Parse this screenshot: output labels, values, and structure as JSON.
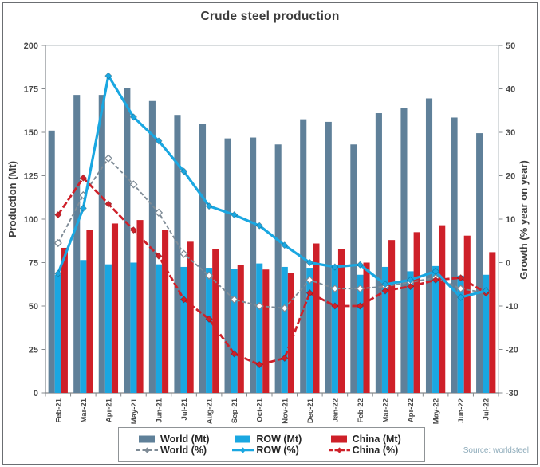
{
  "title": "Crude steel production",
  "source_note": "Source: worldsteel",
  "colors": {
    "world_bar": "#5f8099",
    "row_bar": "#1aa7e1",
    "china_bar": "#ce2029",
    "world_line": "#7e8b96",
    "row_line": "#1aa7e1",
    "china_line": "#ce2029",
    "axis_text": "#4a4a4a",
    "title_text": "#3b3b3b",
    "source_text": "#8caab9"
  },
  "chart_data": {
    "type": "bar",
    "subtype": "grouped bars (left axis, Mt) + lines with diamond markers (right axis, % growth)",
    "title": "Crude steel production",
    "grid": false,
    "legend_position": "bottom",
    "categories": [
      "Feb-21",
      "Mar-21",
      "Apr-21",
      "May-21",
      "Jun-21",
      "Jul-21",
      "Aug-21",
      "Sep-21",
      "Oct-21",
      "Nov-21",
      "Dec-21",
      "Jan-22",
      "Feb-22",
      "Mar-22",
      "Apr-22",
      "May-22",
      "Jun-22",
      "Jul-22"
    ],
    "left_axis": {
      "label": "Production (Mt)",
      "min": 0,
      "max": 200,
      "step": 25,
      "ticks": [
        0,
        25,
        50,
        75,
        100,
        125,
        150,
        175,
        200
      ]
    },
    "right_axis": {
      "label": "Growth (% year on year)",
      "min": -30,
      "max": 50,
      "step": 10,
      "ticks": [
        -30,
        -20,
        -10,
        0,
        10,
        20,
        30,
        40,
        50
      ]
    },
    "series": [
      {
        "name": "World (Mt)",
        "type": "bar",
        "axis": "left",
        "color": "#5f8099",
        "values": [
          151,
          171.5,
          171.5,
          175.5,
          168,
          160,
          155,
          146.5,
          147,
          143,
          157.5,
          156,
          143,
          161,
          164,
          169.5,
          158.5,
          149.5
        ]
      },
      {
        "name": "ROW (Mt)",
        "type": "bar",
        "axis": "left",
        "color": "#1aa7e1",
        "values": [
          68,
          76.5,
          74,
          75,
          74,
          72.5,
          72,
          71.5,
          74.5,
          72.5,
          72,
          73,
          68,
          72.5,
          70,
          73,
          67.5,
          68
        ]
      },
      {
        "name": "China (Mt)",
        "type": "bar",
        "axis": "left",
        "color": "#ce2029",
        "values": [
          83.5,
          94,
          97.5,
          99.5,
          94,
          87,
          83,
          73.5,
          71,
          69,
          86,
          83,
          75,
          88,
          92.5,
          96.5,
          90.5,
          81
        ]
      },
      {
        "name": "World (%)",
        "type": "line",
        "style": "dashed",
        "marker": "open-diamond",
        "axis": "right",
        "color": "#7e8b96",
        "values": [
          4.5,
          15.5,
          24,
          18,
          11.5,
          2,
          -3,
          -8.5,
          -10,
          -10.5,
          -4,
          -6,
          -6,
          -5.5,
          -4.5,
          -3.5,
          -6,
          -7
        ]
      },
      {
        "name": "ROW (%)",
        "type": "line",
        "style": "solid",
        "marker": "diamond",
        "axis": "right",
        "color": "#1aa7e1",
        "values": [
          -2.5,
          12.5,
          43,
          33.5,
          28,
          21,
          13,
          11,
          8.5,
          4,
          0,
          -1,
          -0.5,
          -5,
          -4,
          -2,
          -8,
          -6.5
        ]
      },
      {
        "name": "China (%)",
        "type": "line",
        "style": "dashed",
        "marker": "diamond",
        "axis": "right",
        "color": "#ce2029",
        "values": [
          11,
          19.5,
          13.5,
          7.5,
          1.5,
          -8.5,
          -13,
          -21,
          -23.5,
          -22,
          -7,
          -10,
          -10,
          -6.5,
          -5.5,
          -4,
          -3.5,
          -7
        ]
      }
    ]
  }
}
